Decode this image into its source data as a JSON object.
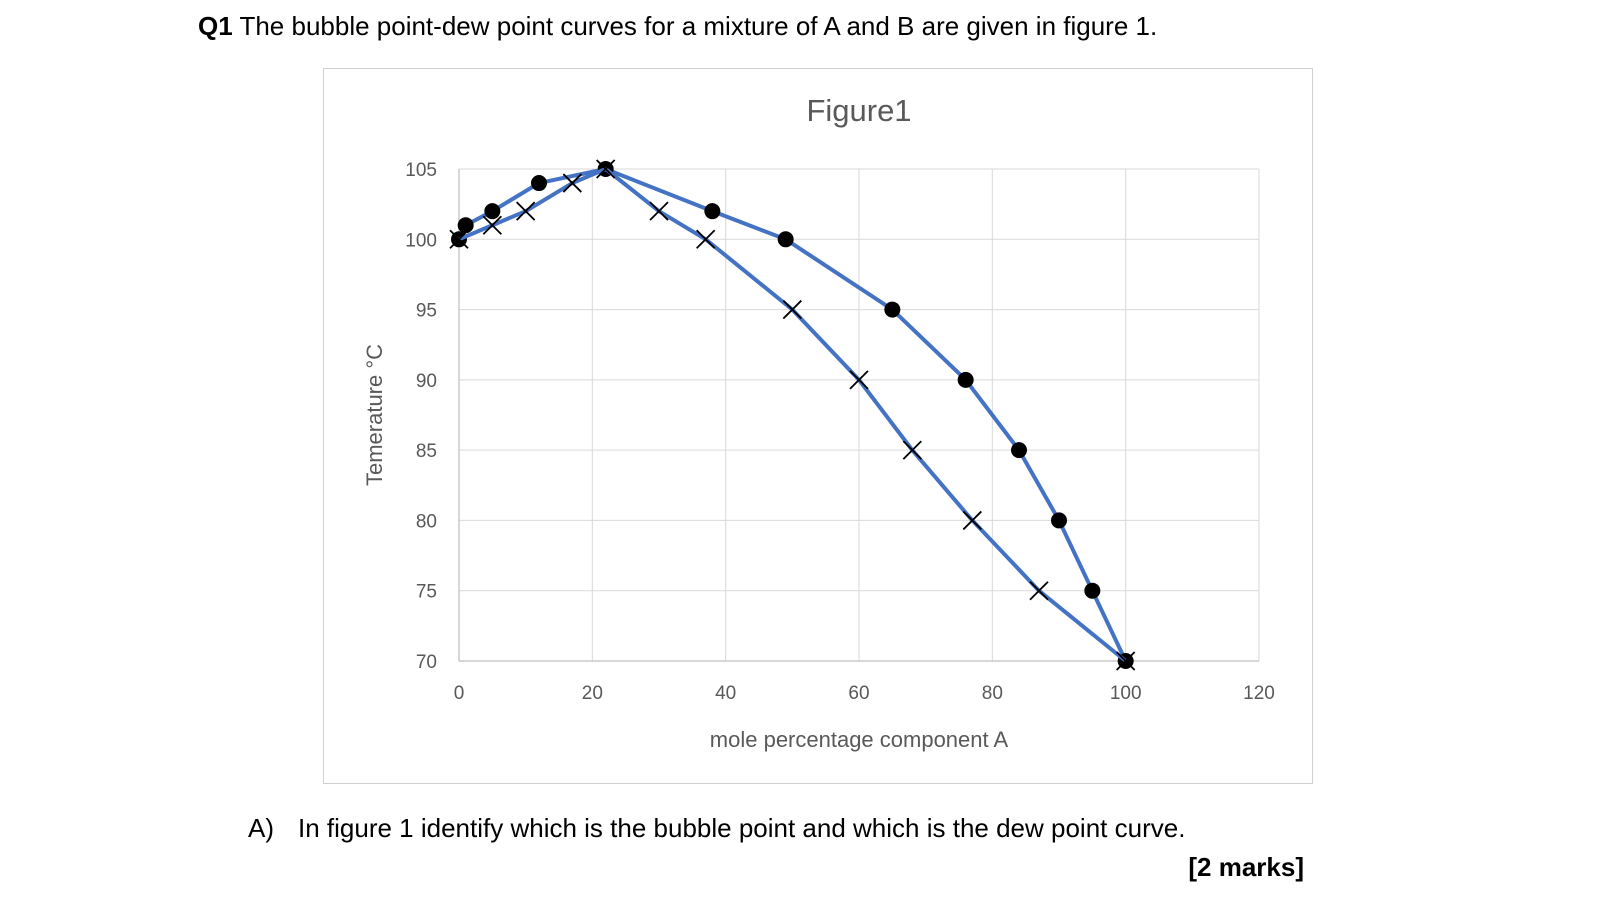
{
  "question": {
    "number": "Q1",
    "text": "The bubble point-dew point curves for a mixture of A and B are given in figure 1."
  },
  "part_a": {
    "label": "A)",
    "text": "In figure 1 identify which is the bubble point and which is the dew point curve.",
    "marks": "[2 marks]"
  },
  "chart_data": {
    "type": "line",
    "title": "Figure1",
    "xlabel": "mole percentage  component A",
    "ylabel": "Temerature °C",
    "xlim": [
      0,
      120
    ],
    "ylim": [
      70,
      105
    ],
    "xticks": [
      0,
      20,
      40,
      60,
      80,
      100,
      120
    ],
    "yticks": [
      70,
      75,
      80,
      85,
      90,
      95,
      100,
      105
    ],
    "grid": true,
    "line_color": "#4472C4",
    "series": [
      {
        "marker": "circle",
        "points": [
          [
            0,
            100
          ],
          [
            1,
            101
          ],
          [
            5,
            102
          ],
          [
            12,
            104
          ],
          [
            22,
            105
          ],
          [
            38,
            102
          ],
          [
            49,
            100
          ],
          [
            65,
            95
          ],
          [
            76,
            90
          ],
          [
            84,
            85
          ],
          [
            90,
            80
          ],
          [
            95,
            75
          ],
          [
            100,
            70
          ]
        ]
      },
      {
        "marker": "cross",
        "points": [
          [
            0,
            100
          ],
          [
            5,
            101
          ],
          [
            10,
            102
          ],
          [
            17,
            104
          ],
          [
            22,
            105
          ],
          [
            30,
            102
          ],
          [
            37,
            100
          ],
          [
            50,
            95
          ],
          [
            60,
            90
          ],
          [
            68,
            85
          ],
          [
            77,
            80
          ],
          [
            87,
            75
          ],
          [
            100,
            70
          ]
        ]
      }
    ]
  }
}
